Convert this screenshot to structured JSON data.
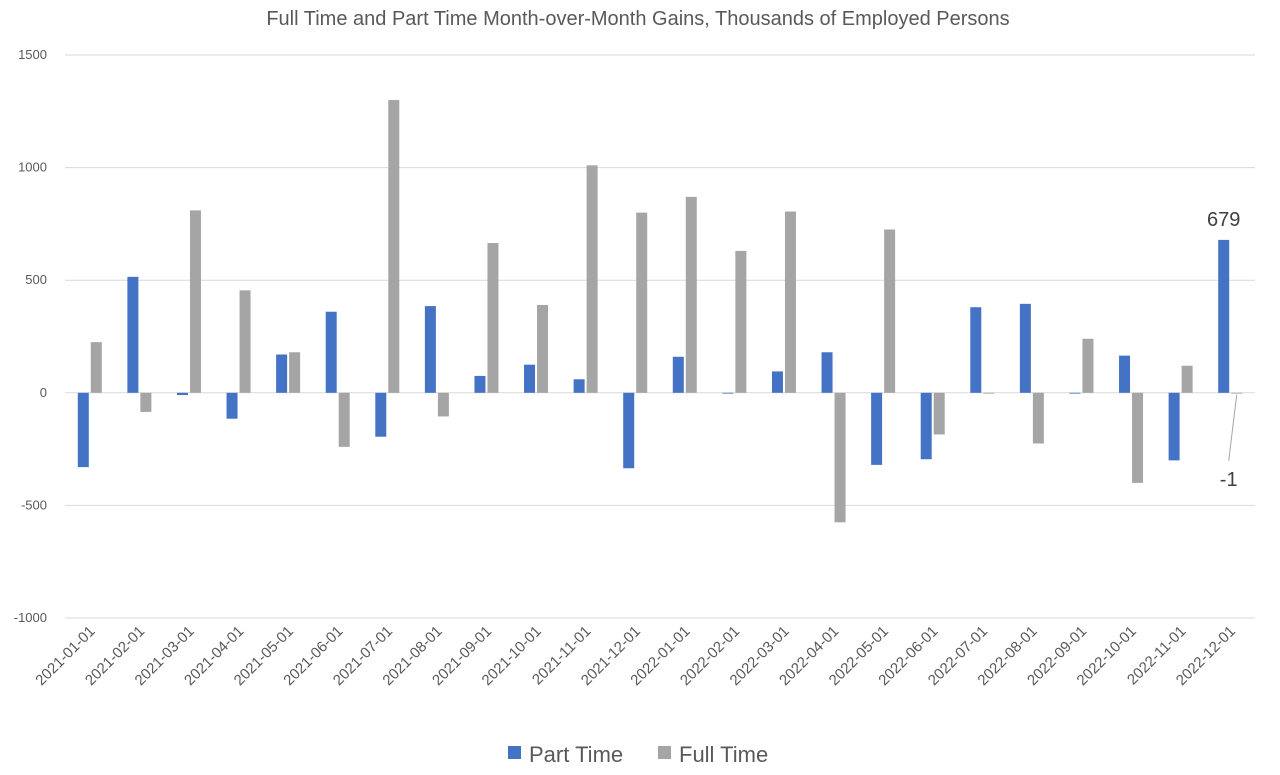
{
  "chart_data": {
    "type": "bar",
    "title": "Full Time and Part Time Month-over-Month Gains, Thousands of Employed Persons",
    "xlabel": "",
    "ylabel": "",
    "ylim": [
      -1000,
      1500
    ],
    "yticks": [
      1500,
      1000,
      500,
      0,
      -500,
      -1000
    ],
    "grid": true,
    "legend_position": "bottom",
    "categories": [
      "2021-01-01",
      "2021-02-01",
      "2021-03-01",
      "2021-04-01",
      "2021-05-01",
      "2021-06-01",
      "2021-07-01",
      "2021-08-01",
      "2021-09-01",
      "2021-10-01",
      "2021-11-01",
      "2021-12-01",
      "2022-01-01",
      "2022-02-01",
      "2022-03-01",
      "2022-04-01",
      "2022-05-01",
      "2022-06-01",
      "2022-07-01",
      "2022-08-01",
      "2022-09-01",
      "2022-10-01",
      "2022-11-01",
      "2022-12-01"
    ],
    "series": [
      {
        "name": "Part Time",
        "color": "#4472c4",
        "values": [
          -330,
          515,
          -10,
          -115,
          170,
          360,
          -195,
          385,
          75,
          125,
          60,
          -335,
          160,
          0,
          95,
          180,
          -320,
          -295,
          380,
          395,
          0,
          165,
          -300,
          679
        ]
      },
      {
        "name": "Full Time",
        "color": "#a5a5a5",
        "values": [
          225,
          -85,
          810,
          455,
          180,
          -240,
          1300,
          -105,
          665,
          390,
          1010,
          800,
          870,
          630,
          805,
          -575,
          725,
          -185,
          0,
          -225,
          240,
          -400,
          120,
          -1
        ]
      }
    ],
    "annotations": [
      {
        "series": 0,
        "index": 23,
        "label": "679"
      },
      {
        "series": 1,
        "index": 23,
        "label": "-1"
      }
    ]
  }
}
